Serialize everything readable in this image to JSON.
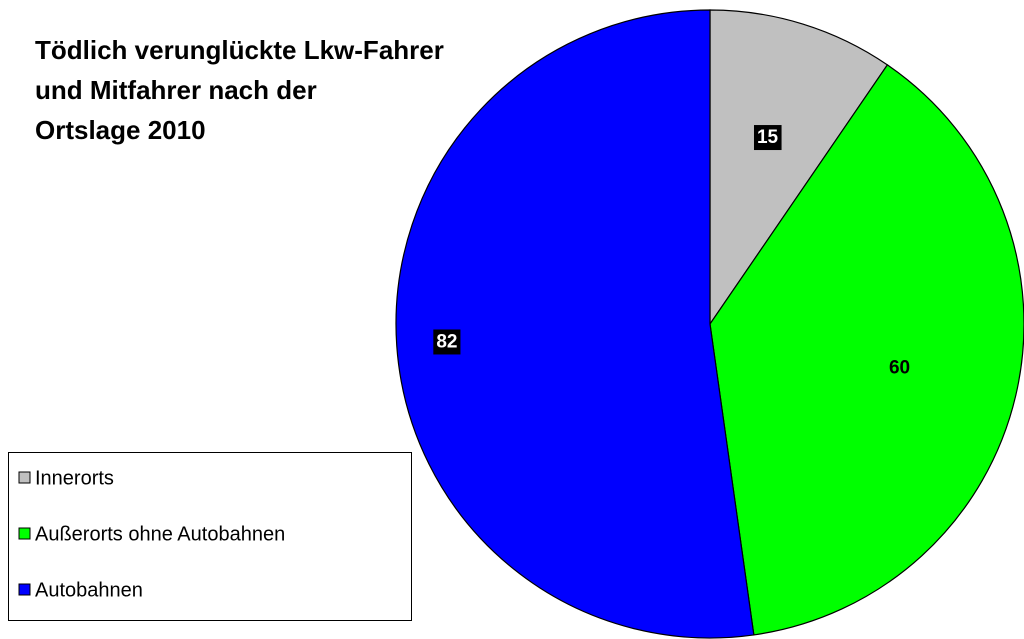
{
  "chart_data": {
    "type": "pie",
    "title": "Tödlich verunglückte Lkw-Fahrer\nund Mitfahrer nach der\nOrtslage 2010",
    "categories": [
      "Innerorts",
      "Außerorts ohne Autobahnen",
      "Autobahnen"
    ],
    "values": [
      15,
      60,
      82
    ],
    "colors": [
      "#c0c0c0",
      "#00ff00",
      "#0000ff"
    ],
    "legend": "bottom-left"
  }
}
